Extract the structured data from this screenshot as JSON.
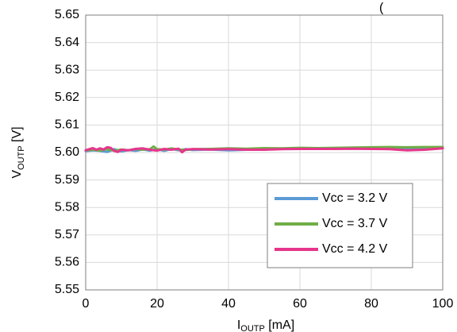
{
  "chart_data": {
    "type": "line",
    "title": "",
    "title_partial_glyph": "(",
    "xlabel": {
      "main": "I",
      "sub": "OUTP",
      "unit": " [mA]"
    },
    "ylabel": {
      "main": "V",
      "sub": "OUTP",
      "unit": " [V]"
    },
    "xlim": [
      0,
      100
    ],
    "ylim": [
      5.55,
      5.65
    ],
    "x_ticks": [
      "0",
      "20",
      "40",
      "60",
      "80",
      "100"
    ],
    "y_ticks": [
      "5.55",
      "5.56",
      "5.57",
      "5.58",
      "5.59",
      "5.60",
      "5.61",
      "5.62",
      "5.63",
      "5.64",
      "5.65"
    ],
    "grid": true,
    "legend_position": "bottom-right",
    "series": [
      {
        "name": "Vcc = 3.2 V",
        "color": "#5B9BD5",
        "x": [
          0,
          2,
          4,
          6,
          8,
          10,
          12,
          14,
          16,
          18,
          20,
          22,
          24,
          26,
          28,
          30,
          35,
          40,
          45,
          50,
          55,
          60,
          65,
          70,
          75,
          80,
          85,
          90,
          95,
          100
        ],
        "y": [
          5.6005,
          5.6008,
          5.6006,
          5.6002,
          5.6012,
          5.6004,
          5.6009,
          5.6006,
          5.6011,
          5.6007,
          5.6012,
          5.6006,
          5.6013,
          5.6008,
          5.6012,
          5.6009,
          5.6011,
          5.6008,
          5.601,
          5.6012,
          5.6013,
          5.6015,
          5.6014,
          5.6015,
          5.6016,
          5.6017,
          5.6018,
          5.6016,
          5.6015,
          5.6016
        ]
      },
      {
        "name": "Vcc = 3.7 V",
        "color": "#70AD47",
        "x": [
          0,
          2,
          4,
          6,
          8,
          10,
          12,
          14,
          16,
          18,
          19,
          20,
          22,
          24,
          26,
          28,
          30,
          35,
          40,
          45,
          50,
          55,
          60,
          65,
          70,
          75,
          80,
          85,
          90,
          95,
          100
        ],
        "y": [
          5.6008,
          5.601,
          5.6007,
          5.6012,
          5.6006,
          5.6011,
          5.6008,
          5.6013,
          5.601,
          5.6012,
          5.6022,
          5.6012,
          5.601,
          5.6015,
          5.6011,
          5.6009,
          5.6012,
          5.6013,
          5.6015,
          5.6014,
          5.6016,
          5.6015,
          5.6017,
          5.6016,
          5.6017,
          5.6018,
          5.6019,
          5.602,
          5.6019,
          5.602,
          5.602
        ]
      },
      {
        "name": "Vcc = 4.2 V",
        "color": "#E6358B",
        "x": [
          0,
          1,
          2,
          3,
          4,
          5,
          6,
          7,
          8,
          9,
          10,
          12,
          14,
          16,
          18,
          20,
          22,
          24,
          26,
          27,
          28,
          30,
          35,
          40,
          45,
          50,
          55,
          60,
          65,
          70,
          75,
          80,
          85,
          90,
          95,
          100
        ],
        "y": [
          5.6008,
          5.6012,
          5.6016,
          5.601,
          5.6015,
          5.6011,
          5.6019,
          5.6017,
          5.6006,
          5.6002,
          5.601,
          5.6008,
          5.6013,
          5.6015,
          5.601,
          5.6007,
          5.6013,
          5.601,
          5.6014,
          5.6001,
          5.6011,
          5.6012,
          5.6011,
          5.6012,
          5.601,
          5.601,
          5.6012,
          5.6013,
          5.6013,
          5.6013,
          5.6014,
          5.6013,
          5.6012,
          5.6008,
          5.601,
          5.6015
        ]
      }
    ]
  }
}
